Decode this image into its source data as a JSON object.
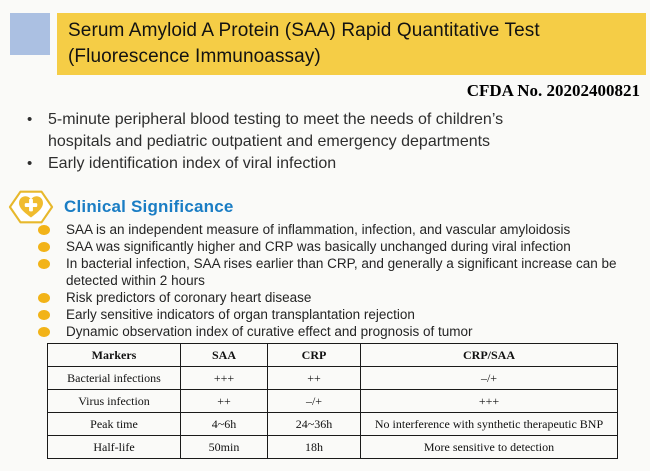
{
  "header": {
    "title_line1": "Serum Amyloid A Protein (SAA) Rapid Quantitative Test",
    "title_line2": "(Fluorescence Immunoassay)",
    "banner_color": "#F5CD46",
    "accent_square_color": "#ABC0E2"
  },
  "cfda_number": "CFDA No. 20202400821",
  "features": [
    "5-minute peripheral blood testing to meet the needs of children’s hospitals and pediatric outpatient and emergency departments",
    "Early identification index of viral infection"
  ],
  "clinical": {
    "heading": "Clinical Significance",
    "heading_color": "#1A7DC4",
    "bullet_color": "#F2B318",
    "icon": "heart-cross-hexagon-icon",
    "items": [
      "SAA is an independent measure of inflammation, infection, and vascular amyloidosis",
      "SAA was significantly higher and CRP was basically unchanged during viral infection",
      "In bacterial infection, SAA rises earlier than CRP, and generally a significant increase can be detected within 2 hours",
      "Risk predictors of coronary heart disease",
      "Early sensitive indicators of organ transplantation rejection",
      "Dynamic observation index of curative effect and prognosis of tumor"
    ]
  },
  "table": {
    "headers": [
      "Markers",
      "SAA",
      "CRP",
      "CRP/SAA"
    ],
    "rows": [
      [
        "Bacterial infections",
        "+++",
        "++",
        "–/+"
      ],
      [
        "Virus infection",
        "++",
        "–/+",
        "+++"
      ],
      [
        "Peak time",
        "4~6h",
        "24~36h",
        "No interference with synthetic therapeutic BNP"
      ],
      [
        "Half-life",
        "50min",
        "18h",
        "More sensitive to detection"
      ]
    ]
  }
}
